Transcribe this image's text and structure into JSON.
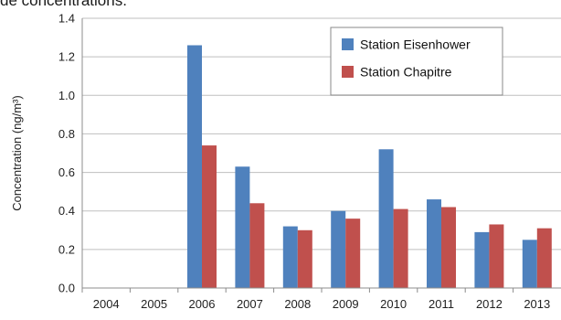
{
  "caption": "de concentrations.",
  "chart_data": {
    "type": "bar",
    "title": "",
    "xlabel": "",
    "ylabel": "Concentration (ng/m³)",
    "ylim": [
      0,
      1.4
    ],
    "yticks": [
      "0.0",
      "0.2",
      "0.4",
      "0.6",
      "0.8",
      "1.0",
      "1.2",
      "1.4"
    ],
    "grid": true,
    "legend_position": "top-right",
    "categories": [
      "2004",
      "2005",
      "2006",
      "2007",
      "2008",
      "2009",
      "2010",
      "2011",
      "2012",
      "2013"
    ],
    "series": [
      {
        "name": "Station Eisenhower",
        "color": "#4f81bd",
        "values": [
          null,
          null,
          1.26,
          0.63,
          0.32,
          0.4,
          0.72,
          0.46,
          0.29,
          0.25
        ]
      },
      {
        "name": "Station Chapitre",
        "color": "#c0504d",
        "values": [
          null,
          null,
          0.74,
          0.44,
          0.3,
          0.36,
          0.41,
          0.42,
          0.33,
          0.31
        ]
      }
    ]
  }
}
